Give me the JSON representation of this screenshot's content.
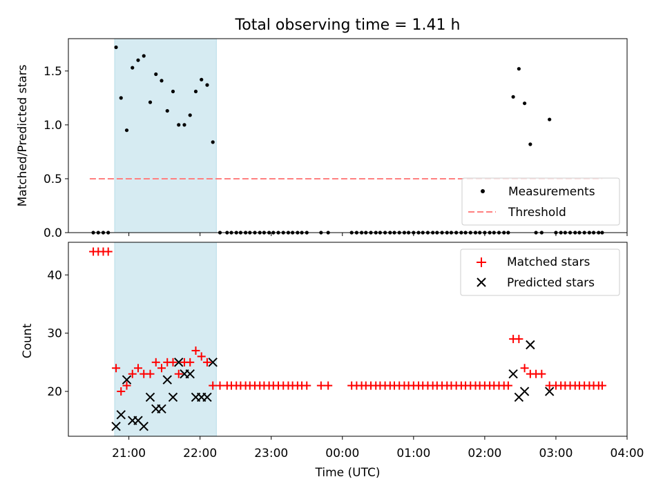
{
  "chart_data": [
    {
      "type": "scatter",
      "title": "Total observing time = 1.41 h",
      "ylabel": "Matched/Predicted stars",
      "xlabel": "",
      "x_unit": "hours after 00:00 UTC (negative = previous evening)",
      "xlim": [
        -3.85,
        4.0
      ],
      "ylim": [
        0.0,
        1.8
      ],
      "yticks": [
        0.0,
        0.5,
        1.0,
        1.5
      ],
      "ytick_labels": [
        "0.0",
        "0.5",
        "1.0",
        "1.5"
      ],
      "highlight_span": [
        -3.2,
        -1.77
      ],
      "legend": {
        "position": "lower-right",
        "entries": [
          "Measurements",
          "Threshold"
        ]
      },
      "series": [
        {
          "name": "Measurements",
          "marker": "dot",
          "color": "#000000",
          "x": [
            -3.5,
            -3.43,
            -3.36,
            -3.29,
            -3.18,
            -3.11,
            -3.03,
            -2.95,
            -2.87,
            -2.79,
            -2.7,
            -2.62,
            -2.54,
            -2.46,
            -2.38,
            -2.3,
            -2.22,
            -2.14,
            -2.06,
            -1.98,
            -1.9,
            -1.82,
            -1.72,
            -1.62,
            -1.56,
            -1.49,
            -1.43,
            -1.36,
            -1.3,
            -1.23,
            -1.16,
            -1.1,
            -1.03,
            -0.97,
            -0.9,
            -0.83,
            -0.76,
            -0.7,
            -0.63,
            -0.57,
            -0.5,
            -0.3,
            -0.2,
            0.13,
            0.2,
            0.27,
            0.33,
            0.4,
            0.47,
            0.53,
            0.6,
            0.67,
            0.73,
            0.8,
            0.87,
            0.93,
            1.0,
            1.07,
            1.13,
            1.2,
            1.27,
            1.33,
            1.4,
            1.47,
            1.53,
            1.6,
            1.67,
            1.73,
            1.8,
            1.87,
            1.93,
            2.0,
            2.07,
            2.13,
            2.2,
            2.27,
            2.33,
            2.4,
            2.48,
            2.56,
            2.64,
            2.72,
            2.8,
            2.91,
            3.0,
            3.07,
            3.13,
            3.2,
            3.27,
            3.33,
            3.4,
            3.47,
            3.53,
            3.6,
            3.65
          ],
          "y": [
            0,
            0,
            0,
            0,
            1.72,
            1.25,
            0.95,
            1.53,
            1.6,
            1.64,
            1.21,
            1.47,
            1.41,
            1.13,
            1.31,
            1.0,
            1.0,
            1.09,
            1.31,
            1.42,
            1.37,
            0.84,
            0,
            0,
            0,
            0,
            0,
            0,
            0,
            0,
            0,
            0,
            0,
            0,
            0,
            0,
            0,
            0,
            0,
            0,
            0,
            0,
            0,
            0,
            0,
            0,
            0,
            0,
            0,
            0,
            0,
            0,
            0,
            0,
            0,
            0,
            0,
            0,
            0,
            0,
            0,
            0,
            0,
            0,
            0,
            0,
            0,
            0,
            0,
            0,
            0,
            0,
            0,
            0,
            0,
            0,
            0,
            1.26,
            1.52,
            1.2,
            0.82,
            0,
            0,
            1.05,
            0,
            0,
            0,
            0,
            0,
            0,
            0,
            0,
            0,
            0,
            0
          ]
        },
        {
          "name": "Threshold",
          "style": "dashed",
          "color": "#ff7f7f",
          "x": [
            -3.55,
            3.65
          ],
          "y": [
            0.5,
            0.5
          ]
        }
      ]
    },
    {
      "type": "scatter",
      "title": "",
      "ylabel": "Count",
      "xlabel": "Time (UTC)",
      "x_unit": "hours after 00:00 UTC (negative = previous evening)",
      "xlim": [
        -3.85,
        4.0
      ],
      "ylim": [
        12.3,
        45.6
      ],
      "yticks": [
        20,
        30,
        40
      ],
      "ytick_labels": [
        "20",
        "30",
        "40"
      ],
      "xticks": [
        -3,
        -2,
        -1,
        0,
        1,
        2,
        3,
        4
      ],
      "xtick_labels": [
        "21:00",
        "22:00",
        "23:00",
        "00:00",
        "01:00",
        "02:00",
        "03:00",
        "04:00"
      ],
      "highlight_span": [
        -3.2,
        -1.77
      ],
      "legend": {
        "position": "top-right",
        "entries": [
          "Matched stars",
          "Predicted stars"
        ]
      },
      "series": [
        {
          "name": "Matched stars",
          "marker": "plus",
          "color": "#ff0000",
          "x": [
            -3.5,
            -3.43,
            -3.36,
            -3.29,
            -3.18,
            -3.11,
            -3.03,
            -2.95,
            -2.87,
            -2.79,
            -2.7,
            -2.62,
            -2.54,
            -2.46,
            -2.38,
            -2.3,
            -2.22,
            -2.14,
            -2.06,
            -1.98,
            -1.9,
            -1.82,
            -1.72,
            -1.62,
            -1.56,
            -1.49,
            -1.43,
            -1.36,
            -1.3,
            -1.23,
            -1.16,
            -1.1,
            -1.03,
            -0.97,
            -0.9,
            -0.83,
            -0.76,
            -0.7,
            -0.63,
            -0.57,
            -0.5,
            -0.3,
            -0.2,
            0.13,
            0.2,
            0.27,
            0.33,
            0.4,
            0.47,
            0.53,
            0.6,
            0.67,
            0.73,
            0.8,
            0.87,
            0.93,
            1.0,
            1.07,
            1.13,
            1.2,
            1.27,
            1.33,
            1.4,
            1.47,
            1.53,
            1.6,
            1.67,
            1.73,
            1.8,
            1.87,
            1.93,
            2.0,
            2.07,
            2.13,
            2.2,
            2.27,
            2.33,
            2.4,
            2.48,
            2.56,
            2.64,
            2.72,
            2.8,
            2.91,
            3.0,
            3.07,
            3.13,
            3.2,
            3.27,
            3.33,
            3.4,
            3.47,
            3.53,
            3.6,
            3.65
          ],
          "y": [
            44,
            44,
            44,
            44,
            24,
            20,
            21,
            23,
            24,
            23,
            23,
            25,
            24,
            25,
            25,
            23,
            25,
            25,
            27,
            26,
            25,
            21,
            21,
            21,
            21,
            21,
            21,
            21,
            21,
            21,
            21,
            21,
            21,
            21,
            21,
            21,
            21,
            21,
            21,
            21,
            21,
            21,
            21,
            21,
            21,
            21,
            21,
            21,
            21,
            21,
            21,
            21,
            21,
            21,
            21,
            21,
            21,
            21,
            21,
            21,
            21,
            21,
            21,
            21,
            21,
            21,
            21,
            21,
            21,
            21,
            21,
            21,
            21,
            21,
            21,
            21,
            21,
            29,
            29,
            24,
            23,
            23,
            23,
            21,
            21,
            21,
            21,
            21,
            21,
            21,
            21,
            21,
            21,
            21,
            21
          ]
        },
        {
          "name": "Predicted stars",
          "marker": "x",
          "color": "#000000",
          "x": [
            -3.18,
            -3.11,
            -3.03,
            -2.95,
            -2.87,
            -2.79,
            -2.7,
            -2.62,
            -2.54,
            -2.46,
            -2.38,
            -2.3,
            -2.22,
            -2.14,
            -2.06,
            -1.98,
            -1.9,
            -1.82,
            2.4,
            2.48,
            2.56,
            2.64,
            2.91
          ],
          "y": [
            14,
            16,
            22,
            15,
            15,
            14,
            19,
            17,
            17,
            22,
            19,
            25,
            23,
            23,
            19,
            19,
            19,
            25,
            23,
            19,
            20,
            28,
            20
          ]
        }
      ]
    }
  ]
}
